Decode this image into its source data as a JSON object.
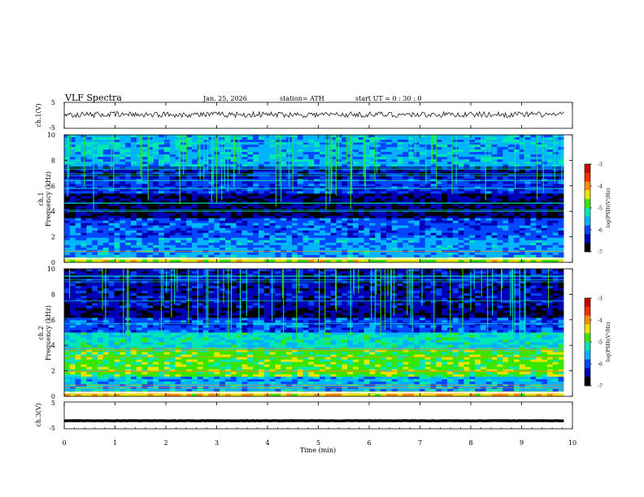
{
  "header": {
    "title": "VLF  Spectra",
    "date": "Jan. 25, 2026",
    "station": "station= ATH",
    "start_ut": "start  UT  =   0 : 30 : 0"
  },
  "colorbar": {
    "label": "log(PSD)(V²/Hz)",
    "ticks": [
      "-3",
      "-4",
      "-5",
      "-6",
      "-7"
    ],
    "colors": [
      "#c80000",
      "#ff2a00",
      "#ff8c00",
      "#e6e600",
      "#39e600",
      "#00e6b4",
      "#00b4ff",
      "#0046ff",
      "#0000b4",
      "#000000"
    ]
  },
  "chart_data": [
    {
      "type": "line",
      "ylabel": "ch.1(V)",
      "ylim": [
        -5,
        5
      ],
      "yticks": [
        "5",
        "-5"
      ],
      "description_level": 0.3
    },
    {
      "type": "heatmap",
      "ylabel": "ch.1\nFrequency  (kHz)",
      "ylim": [
        0,
        10
      ],
      "yticks": [
        "10",
        "8",
        "6",
        "4",
        "2",
        "0"
      ],
      "bands": [
        {
          "f0": 7.5,
          "f1": 10.0,
          "value": -5.6
        },
        {
          "f0": 6.6,
          "f1": 7.5,
          "value": -6.4
        },
        {
          "f0": 5.3,
          "f1": 6.6,
          "value": -6.1
        },
        {
          "f0": 3.4,
          "f1": 5.3,
          "value": -6.6
        },
        {
          "f0": 2.0,
          "f1": 3.4,
          "value": -6.0
        },
        {
          "f0": 0.4,
          "f1": 2.0,
          "value": -5.7
        },
        {
          "f0": 0.0,
          "f1": 0.4,
          "value": -4.5
        }
      ]
    },
    {
      "type": "heatmap",
      "ylabel": "ch.2\nFrequency  (kHz)",
      "ylim": [
        0,
        10
      ],
      "yticks": [
        "10",
        "8",
        "6",
        "4",
        "2",
        "0"
      ],
      "bands": [
        {
          "f0": 7.0,
          "f1": 10.0,
          "value": -6.4
        },
        {
          "f0": 6.2,
          "f1": 7.0,
          "value": -6.6
        },
        {
          "f0": 5.0,
          "f1": 6.2,
          "value": -6.0
        },
        {
          "f0": 3.6,
          "f1": 5.0,
          "value": -5.3
        },
        {
          "f0": 1.6,
          "f1": 3.6,
          "value": -4.8
        },
        {
          "f0": 0.4,
          "f1": 1.6,
          "value": -5.6
        },
        {
          "f0": 0.0,
          "f1": 0.4,
          "value": -4.3
        }
      ]
    },
    {
      "type": "line",
      "ylabel": "ch.3(V)",
      "ylim": [
        -5,
        5
      ],
      "yticks": [
        "5",
        "-5"
      ],
      "description_level": -2.0
    }
  ],
  "x_axis": {
    "label": "Time  (min)",
    "ticks": [
      "0",
      "1",
      "2",
      "3",
      "4",
      "5",
      "6",
      "7",
      "8",
      "9",
      "10"
    ],
    "xlim": [
      0,
      10
    ],
    "data_end": 9.83
  }
}
